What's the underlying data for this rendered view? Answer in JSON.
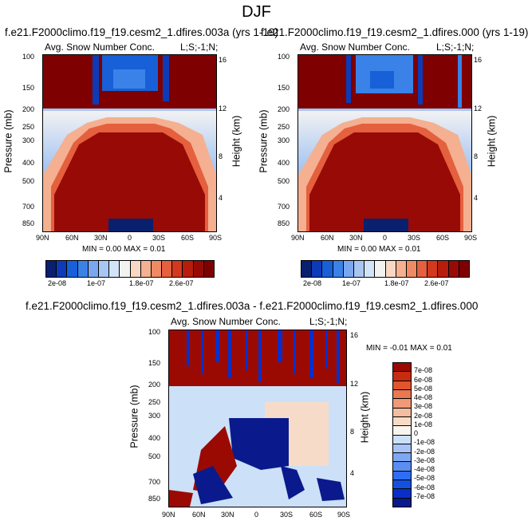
{
  "page": {
    "title": "DJF"
  },
  "panels": [
    {
      "id": "p1",
      "case_title": "f.e21.F2000climo.f19_f19.cesm2_1.dfires.003a (yrs 1-19)",
      "variable": "Avg. Snow Number Conc.",
      "corner": "L;S;-1;N;",
      "stats": "MIN =  0.00  MAX =  0.01"
    },
    {
      "id": "p2",
      "case_title": "f.e21.F2000climo.f19_f19.cesm2_1.dfires.000 (yrs 1-19)",
      "variable": "Avg. Snow Number Conc.",
      "corner": "L;S;-1;N;",
      "stats": "MIN =  0.00  MAX =  0.01"
    },
    {
      "id": "p3",
      "case_title": "f.e21.F2000climo.f19_f19.cesm2_1.dfires.003a - f.e21.F2000climo.f19_f19.cesm2_1.dfires.000",
      "variable": "Avg. Snow Number Conc.",
      "corner": "L;S;-1;N;",
      "stats": "MIN = -0.01  MAX =  0.01"
    }
  ],
  "colorbars": {
    "absolute": {
      "colors": [
        "#08206e",
        "#0d3bb8",
        "#1760d8",
        "#3a82e8",
        "#7aa8f0",
        "#a8c6f2",
        "#d2e3f8",
        "#f2f2f2",
        "#f8d8c4",
        "#f4b090",
        "#ee8a64",
        "#e4603e",
        "#d2391e",
        "#b81c0c",
        "#980a05",
        "#7e0000"
      ],
      "labels": [
        "2e-08",
        "1e-07",
        "1.8e-07",
        "2.6e-07"
      ]
    },
    "difference": {
      "colors": [
        "#0a1a8c",
        "#0a2fc8",
        "#1450e0",
        "#2e6ef0",
        "#5a8ef2",
        "#7ea8f4",
        "#a6c4f6",
        "#cce0f8",
        "#f8f4ee",
        "#f6dcc8",
        "#f4bca0",
        "#f09a78",
        "#ea7850",
        "#e0552e",
        "#c82c10",
        "#9a0a02"
      ],
      "labels": [
        "7e-08",
        "6e-08",
        "5e-08",
        "4e-08",
        "3e-08",
        "2e-08",
        "1e-08",
        "0",
        "-1e-08",
        "-2e-08",
        "-3e-08",
        "-4e-08",
        "-5e-08",
        "-6e-08",
        "-7e-08"
      ]
    }
  },
  "chart_data": [
    {
      "type": "heatmap",
      "panel": "p1",
      "title": "f.e21.F2000climo.f19_f19.cesm2_1.dfires.003a (yrs 1-19)",
      "subtitle": "Avg. Snow Number Conc.",
      "xlabel": "",
      "ylabel": "Pressure (mb)",
      "ylabel_right": "Height (km)",
      "x_ticks": [
        "90N",
        "60N",
        "30N",
        "0",
        "30S",
        "60S",
        "90S"
      ],
      "y_ticks": [
        "100",
        "150",
        "200",
        "250",
        "300",
        "400",
        "500",
        "700",
        "850"
      ],
      "y_ticks_right": [
        "16",
        "12",
        "8",
        "4"
      ],
      "y_scale": "log (pressure), reversed",
      "xlim": [
        90,
        -90
      ],
      "ylim": [
        1000,
        100
      ]
    },
    {
      "type": "heatmap",
      "panel": "p2",
      "title": "f.e21.F2000climo.f19_f19.cesm2_1.dfires.000 (yrs 1-19)",
      "subtitle": "Avg. Snow Number Conc.",
      "xlabel": "",
      "ylabel": "Pressure (mb)",
      "ylabel_right": "Height (km)",
      "x_ticks": [
        "90N",
        "60N",
        "30N",
        "0",
        "30S",
        "60S",
        "90S"
      ],
      "y_ticks": [
        "100",
        "150",
        "200",
        "250",
        "300",
        "400",
        "500",
        "700",
        "850"
      ],
      "y_ticks_right": [
        "16",
        "12",
        "8",
        "4"
      ],
      "y_scale": "log (pressure), reversed",
      "xlim": [
        90,
        -90
      ],
      "ylim": [
        1000,
        100
      ]
    },
    {
      "type": "heatmap",
      "panel": "p3",
      "title": "f.e21.F2000climo.f19_f19.cesm2_1.dfires.003a - f.e21.F2000climo.f19_f19.cesm2_1.dfires.000",
      "subtitle": "Avg. Snow Number Conc.",
      "xlabel": "",
      "ylabel": "Pressure (mb)",
      "ylabel_right": "Height (km)",
      "x_ticks": [
        "90N",
        "60N",
        "30N",
        "0",
        "30S",
        "60S",
        "90S"
      ],
      "y_ticks": [
        "100",
        "150",
        "200",
        "250",
        "300",
        "400",
        "500",
        "700",
        "850"
      ],
      "y_ticks_right": [
        "16",
        "12",
        "8",
        "4"
      ],
      "y_scale": "log (pressure), reversed",
      "xlim": [
        90,
        -90
      ],
      "ylim": [
        1000,
        100
      ]
    }
  ]
}
